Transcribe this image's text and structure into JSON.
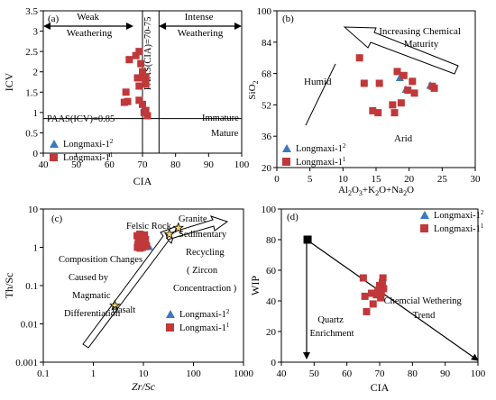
{
  "chart_data": [
    {
      "panel": "(a)",
      "type": "scatter",
      "xlabel": "CIA",
      "ylabel": "ICV",
      "xlim": [
        40,
        100
      ],
      "ylim": [
        0,
        3.5
      ],
      "xticks": [
        "40",
        "50",
        "60",
        "70",
        "80",
        "90",
        "100"
      ],
      "yticks": [
        "0",
        "0.5",
        "1",
        "1.5",
        "2",
        "2.5",
        "3",
        "3.5"
      ],
      "annotations": {
        "weak": "Weak\nWeathering",
        "intense": "Intense\nWeathering",
        "paas_cia": "PAAS(CIA)=70-75",
        "paas_icv": "PAAS(ICV)=0.85",
        "immature": "Immature",
        "mature": "Mature"
      },
      "legend_position": "bottom-left",
      "series": [
        {
          "name": "Longmaxi-1",
          "sup": "2",
          "marker": "triangle",
          "color": "#3a78c2",
          "points": [
            [
              70.5,
              1.12
            ]
          ]
        },
        {
          "name": "Longmaxi-1",
          "sup": "1",
          "marker": "square",
          "color": "#c0383a",
          "points": [
            [
              66,
              2.3
            ],
            [
              68,
              2.4
            ],
            [
              69,
              2.5
            ],
            [
              69.5,
              2.2
            ],
            [
              70,
              2.0
            ],
            [
              70.5,
              1.85
            ],
            [
              71,
              1.88
            ],
            [
              68.5,
              1.85
            ],
            [
              69,
              1.65
            ],
            [
              71,
              1.7
            ],
            [
              65,
              1.5
            ],
            [
              69,
              1.3
            ],
            [
              70,
              1.2
            ],
            [
              64.5,
              1.25
            ],
            [
              65.5,
              1.27
            ],
            [
              70.5,
              1.0
            ],
            [
              71,
              1.05
            ],
            [
              71.5,
              0.92
            ]
          ]
        }
      ]
    },
    {
      "panel": "(b)",
      "type": "scatter",
      "xlabel": "Al2O3+K2O+Na2O",
      "ylabel": "SiO2",
      "xlim": [
        0,
        30
      ],
      "ylim": [
        20,
        100
      ],
      "xticks": [
        "0",
        "5",
        "10",
        "15",
        "20",
        "25",
        "30"
      ],
      "yticks": [
        "20",
        "36",
        "52",
        "68",
        "84",
        "100"
      ],
      "annotations": {
        "maturity": "Increasing Chemical\nMaturity",
        "humid": "Humid",
        "arid": "Arid"
      },
      "legend_position": "bottom-left",
      "series": [
        {
          "name": "Longmaxi-1",
          "sup": "2",
          "marker": "triangle",
          "color": "#3a78c2",
          "points": [
            [
              18.6,
              66
            ],
            [
              19.5,
              60
            ],
            [
              23.2,
              62
            ]
          ]
        },
        {
          "name": "Longmaxi-1",
          "sup": "1",
          "marker": "square",
          "color": "#c0383a",
          "points": [
            [
              12.5,
              76
            ],
            [
              13.2,
              63
            ],
            [
              15.5,
              63
            ],
            [
              18.2,
              69
            ],
            [
              19.2,
              67
            ],
            [
              20.5,
              64
            ],
            [
              19.8,
              59.5
            ],
            [
              20.8,
              58
            ],
            [
              18.8,
              53
            ],
            [
              17.5,
              52
            ],
            [
              14.5,
              49
            ],
            [
              15.3,
              48
            ],
            [
              17.8,
              48
            ],
            [
              23.5,
              61.5
            ],
            [
              23.8,
              60.5
            ]
          ]
        }
      ]
    },
    {
      "panel": "(c)",
      "type": "scatter",
      "xlabel": "Zr/Sc",
      "ylabel": "Th/Sc",
      "xscale": "log",
      "yscale": "log",
      "xlim": [
        0.1,
        1000
      ],
      "ylim": [
        0.001,
        10
      ],
      "xticks": [
        "0.1",
        "1",
        "10",
        "100",
        "1000"
      ],
      "yticks": [
        "0.001",
        "0.01",
        "0.1",
        "1",
        "10"
      ],
      "annotations": {
        "felsic": "Felsic Rock",
        "granite": "Granite",
        "basalt": "Basalt",
        "composition": "Composition Changes",
        "caused": "Caused by",
        "magmatic": "Magmatic",
        "differentiation": "Differentiation",
        "sedimentary": "Sedimentary",
        "recycling": "Recycling",
        "zircon": "( Zircon",
        "concentration": "Concentraction )"
      },
      "reference_points": [
        {
          "label": "Basalt",
          "x": 2.7,
          "y": 0.03
        },
        {
          "label": "Felsic Rock",
          "x": 33,
          "y": 2.2
        },
        {
          "label": "Granite",
          "x": 50,
          "y": 3.2
        }
      ],
      "legend_position": "bottom-right",
      "series": [
        {
          "name": "Longmaxi-1",
          "sup": "2",
          "marker": "triangle",
          "color": "#3a78c2",
          "points": [
            [
              13,
              1.05
            ]
          ]
        },
        {
          "name": "Longmaxi-1",
          "sup": "1",
          "marker": "square",
          "color": "#c0383a",
          "points": [
            [
              7.5,
              2.0
            ],
            [
              8.5,
              2.2
            ],
            [
              9.5,
              1.9
            ],
            [
              10.5,
              2.1
            ],
            [
              11,
              1.6
            ],
            [
              8,
              1.5
            ],
            [
              9,
              1.4
            ],
            [
              10,
              1.5
            ],
            [
              7.8,
              1.2
            ],
            [
              8.8,
              1.15
            ],
            [
              9.8,
              1.2
            ],
            [
              10.8,
              1.25
            ],
            [
              7.6,
              1.0
            ],
            [
              8.6,
              0.95
            ],
            [
              9.6,
              1.0
            ],
            [
              10.6,
              1.05
            ],
            [
              11.5,
              1.1
            ]
          ]
        }
      ]
    },
    {
      "panel": "(d)",
      "type": "scatter",
      "xlabel": "CIA",
      "ylabel": "WIP",
      "xlim": [
        40,
        100
      ],
      "ylim": [
        0,
        100
      ],
      "xticks": [
        "40",
        "50",
        "60",
        "70",
        "80",
        "90",
        "100"
      ],
      "yticks": [
        "0",
        "20",
        "40",
        "60",
        "80",
        "100"
      ],
      "annotations": {
        "wethering": "Chemcial Wethering\nTrend",
        "quartz": "Quartz\nEnrichment"
      },
      "reference_points": [
        {
          "label": "",
          "x": 48,
          "y": 80
        }
      ],
      "legend_position": "top-right",
      "series": [
        {
          "name": "Longmaxi-1",
          "sup": "2",
          "marker": "triangle",
          "color": "#3a78c2",
          "points": []
        },
        {
          "name": "Longmaxi-1",
          "sup": "1",
          "marker": "square",
          "color": "#c0383a",
          "points": [
            [
              65,
              55
            ],
            [
              65.5,
              43
            ],
            [
              66,
              33
            ],
            [
              67.5,
              45
            ],
            [
              68,
              38
            ],
            [
              69,
              44
            ],
            [
              69.5,
              47
            ],
            [
              70,
              50
            ],
            [
              70.3,
              42
            ],
            [
              70.8,
              52
            ],
            [
              71,
              55
            ],
            [
              71.2,
              48
            ],
            [
              70.5,
              45
            ]
          ]
        }
      ]
    }
  ]
}
